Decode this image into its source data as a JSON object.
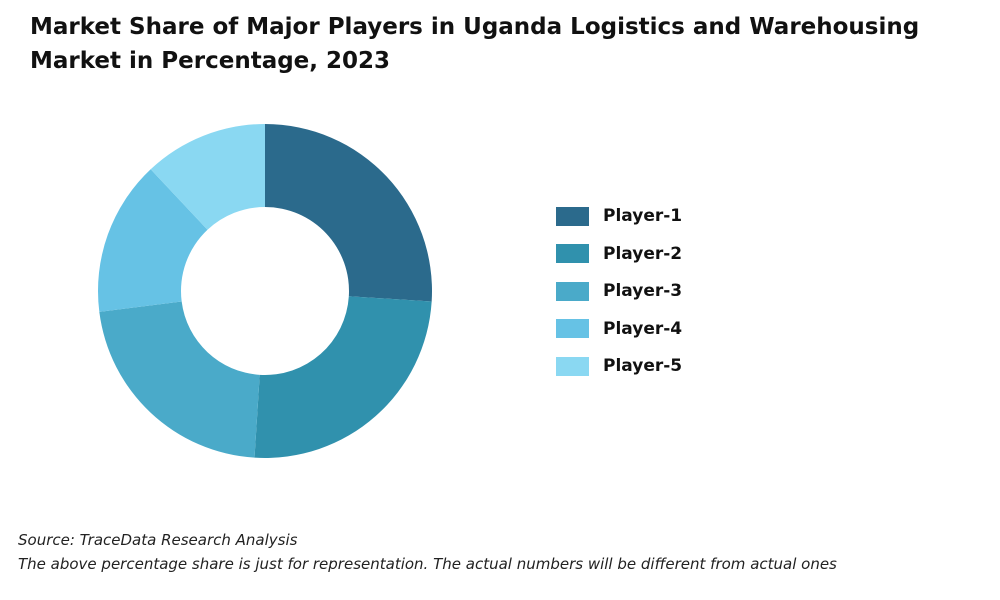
{
  "chart_data": {
    "type": "pie",
    "title": "Market Share of Major Players in Uganda Logistics and Warehousing Market in Percentage, 2023",
    "categories": [
      "Player-1",
      "Player-2",
      "Player-3",
      "Player-4",
      "Player-5"
    ],
    "values": [
      26,
      25,
      22,
      15,
      12
    ],
    "unit": "%",
    "colors": [
      "#2b6a8c",
      "#3091ad",
      "#4aaac9",
      "#66c2e5",
      "#8ad8f2"
    ],
    "donut": true,
    "data_labels": false,
    "legend_position": "right"
  },
  "footer": {
    "source": "Source: TraceData Research Analysis",
    "note": "The above percentage share is just for representation. The actual numbers will be different from actual ones"
  }
}
